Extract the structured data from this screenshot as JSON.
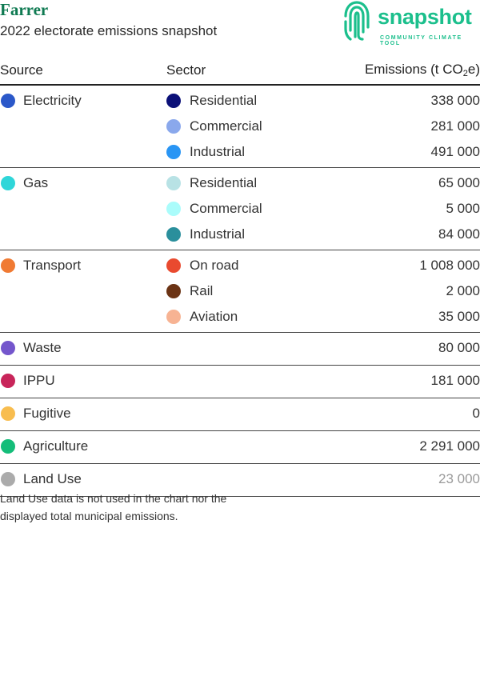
{
  "header": {
    "title": "Farrer",
    "subtitle": "2022 electorate emissions snapshot",
    "logo": {
      "word": "snapshot",
      "tagline": "COMMUNITY CLIMATE TOOL",
      "icon": "fingerprint-icon",
      "color": "#1bbf8c"
    }
  },
  "table": {
    "headers": {
      "source": "Source",
      "sector": "Sector",
      "emissions_prefix": "Emissions (t CO",
      "emissions_sub": "2",
      "emissions_suffix": "e)"
    },
    "rows": [
      {
        "source": "Electricity",
        "source_color": "#2b58c9",
        "sectors": [
          {
            "name": "Residential",
            "color": "#0b1078",
            "value": "338 000"
          },
          {
            "name": "Commercial",
            "color": "#8aa8ec",
            "value": "281 000"
          },
          {
            "name": "Industrial",
            "color": "#2995f4",
            "value": "491 000"
          }
        ]
      },
      {
        "source": "Gas",
        "source_color": "#2fd6d9",
        "sectors": [
          {
            "name": "Residential",
            "color": "#b8e2e5",
            "value": "65 000"
          },
          {
            "name": "Commercial",
            "color": "#aafcfb",
            "value": "5 000"
          },
          {
            "name": "Industrial",
            "color": "#2a8f9c",
            "value": "84 000"
          }
        ]
      },
      {
        "source": "Transport",
        "source_color": "#f07a33",
        "sectors": [
          {
            "name": "On road",
            "color": "#e94a2f",
            "value": "1 008 000"
          },
          {
            "name": "Rail",
            "color": "#6b3314",
            "value": "2 000"
          },
          {
            "name": "Aviation",
            "color": "#f7b393",
            "value": "35 000"
          }
        ]
      },
      {
        "source": "Waste",
        "source_color": "#7456cc",
        "value": "80 000"
      },
      {
        "source": "IPPU",
        "source_color": "#c8255a",
        "value": "181 000"
      },
      {
        "source": "Fugitive",
        "source_color": "#f8bd4f",
        "value": "0"
      },
      {
        "source": "Agriculture",
        "source_color": "#14bd79",
        "value": "2 291 000"
      },
      {
        "source": "Land Use",
        "source_color": "#ababab",
        "value": "23 000",
        "muted": true
      }
    ]
  },
  "note": "Land Use data is not used in the chart nor the displayed total municipal emissions."
}
